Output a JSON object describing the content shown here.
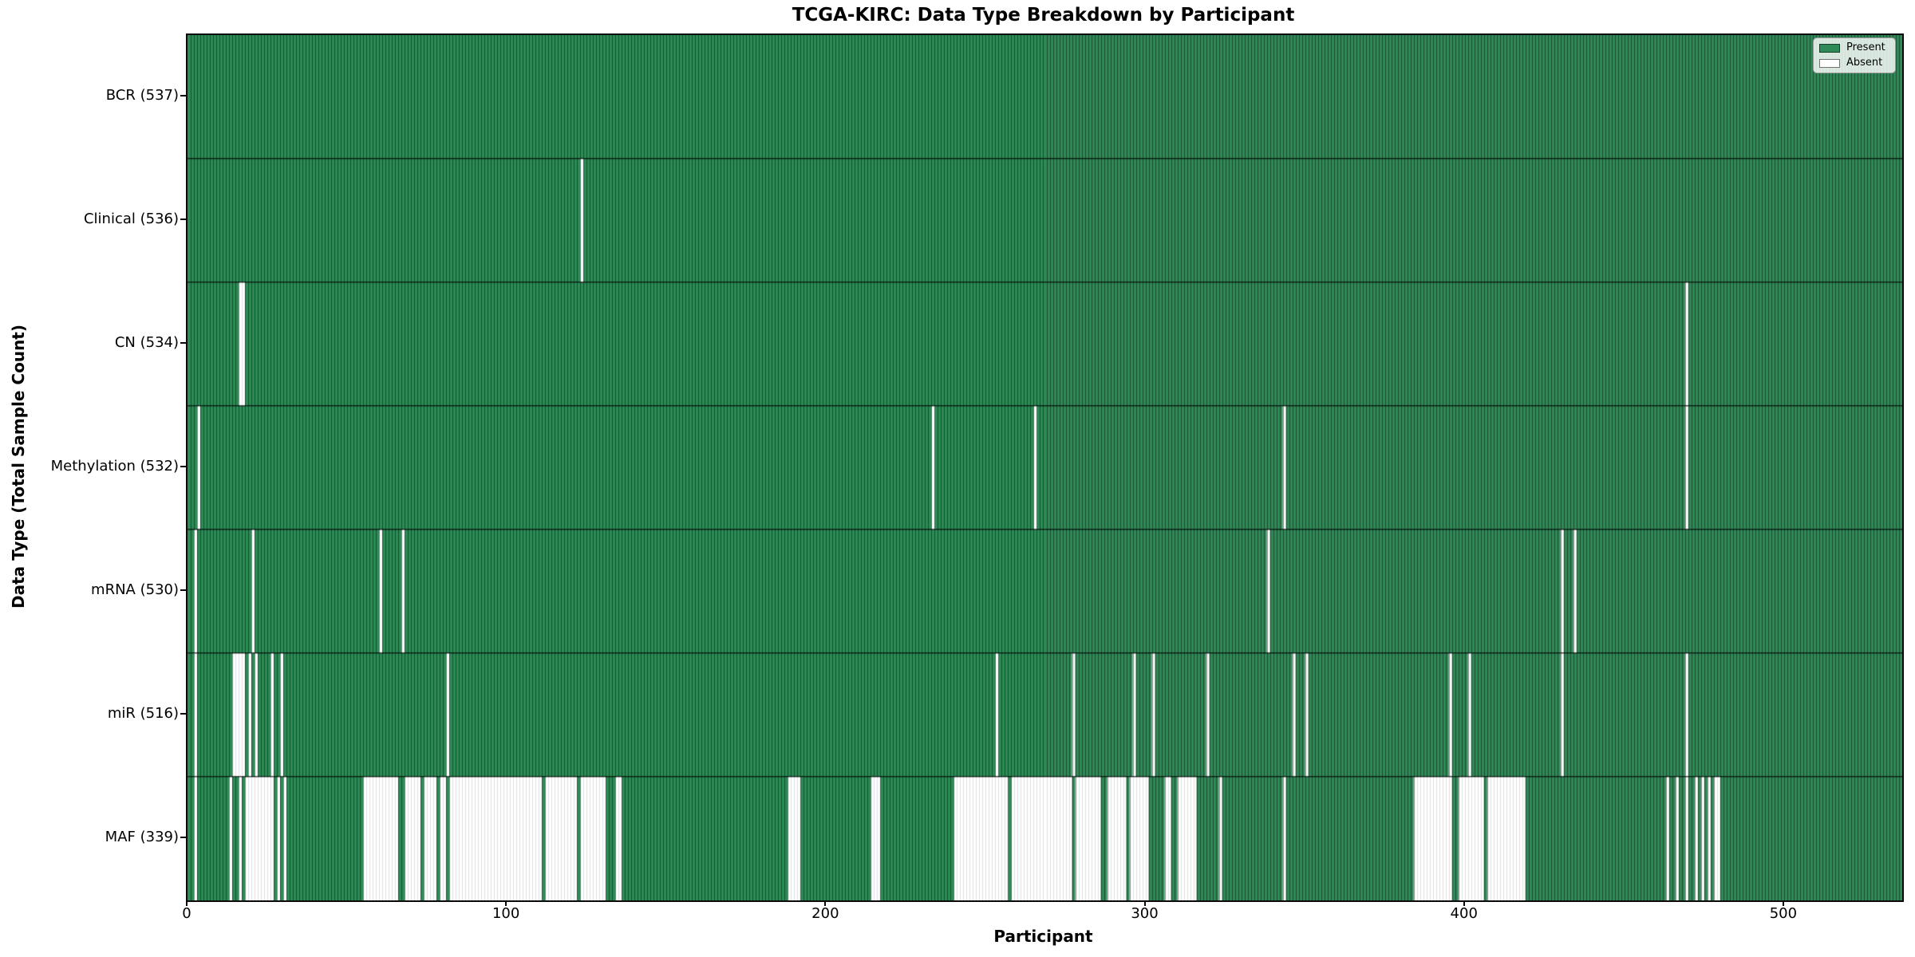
{
  "title": "TCGA-KIRC: Data Type Breakdown by Participant",
  "legend": {
    "present_label": "Present",
    "absent_label": "Absent"
  },
  "chart_data": {
    "type": "heatmap",
    "title": "TCGA-KIRC: Data Type Breakdown by Participant",
    "xlabel": "Participant",
    "ylabel": "Data Type (Total Sample Count)",
    "x_ticks": [
      0,
      100,
      200,
      300,
      400,
      500
    ],
    "xlim": [
      0,
      537
    ],
    "n_participants": 537,
    "grid": false,
    "legend_position": "upper right",
    "colors": {
      "present": "#2e8b57",
      "absent": "#ffffff",
      "present_edge": "rgba(0,0,0,0.45)",
      "absent_edge": "rgba(0,0,0,0.12)",
      "row_divider": "rgba(0,0,0,0.72)"
    },
    "legend": [
      {
        "label": "Present",
        "color": "#2e8b57"
      },
      {
        "label": "Absent",
        "color": "#ffffff"
      }
    ],
    "rows": [
      {
        "name": "BCR",
        "label": "BCR (537)",
        "present_count": 537,
        "absent_ranges": []
      },
      {
        "name": "Clinical",
        "label": "Clinical (536)",
        "present_count": 536,
        "absent_ranges": [
          [
            123,
            123
          ]
        ]
      },
      {
        "name": "CN",
        "label": "CN (534)",
        "present_count": 534,
        "absent_ranges": [
          [
            16,
            17
          ],
          [
            469,
            469
          ]
        ]
      },
      {
        "name": "Methylation",
        "label": "Methylation (532)",
        "present_count": 532,
        "absent_ranges": [
          [
            3,
            3
          ],
          [
            233,
            233
          ],
          [
            265,
            265
          ],
          [
            343,
            343
          ],
          [
            469,
            469
          ]
        ]
      },
      {
        "name": "mRNA",
        "label": "mRNA (530)",
        "present_count": 530,
        "absent_ranges": [
          [
            2,
            2
          ],
          [
            20,
            20
          ],
          [
            60,
            60
          ],
          [
            67,
            67
          ],
          [
            338,
            338
          ],
          [
            430,
            430
          ],
          [
            434,
            434
          ]
        ]
      },
      {
        "name": "miR",
        "label": "miR (516)",
        "present_count": 516,
        "absent_ranges": [
          [
            2,
            2
          ],
          [
            14,
            17
          ],
          [
            19,
            19
          ],
          [
            21,
            21
          ],
          [
            26,
            26
          ],
          [
            29,
            29
          ],
          [
            81,
            81
          ],
          [
            253,
            253
          ],
          [
            277,
            277
          ],
          [
            296,
            296
          ],
          [
            302,
            302
          ],
          [
            319,
            319
          ],
          [
            346,
            346
          ],
          [
            350,
            350
          ],
          [
            395,
            395
          ],
          [
            401,
            401
          ],
          [
            430,
            430
          ],
          [
            469,
            469
          ]
        ]
      },
      {
        "name": "MAF",
        "label": "MAF (339)",
        "present_count": 339,
        "absent_ranges": [
          [
            2,
            2
          ],
          [
            13,
            13
          ],
          [
            16,
            16
          ],
          [
            18,
            26
          ],
          [
            28,
            28
          ],
          [
            30,
            30
          ],
          [
            55,
            65
          ],
          [
            68,
            72
          ],
          [
            74,
            77
          ],
          [
            79,
            80
          ],
          [
            82,
            110
          ],
          [
            112,
            121
          ],
          [
            123,
            130
          ],
          [
            134,
            135
          ],
          [
            188,
            191
          ],
          [
            214,
            216
          ],
          [
            240,
            256
          ],
          [
            258,
            276
          ],
          [
            278,
            285
          ],
          [
            288,
            293
          ],
          [
            295,
            300
          ],
          [
            306,
            307
          ],
          [
            310,
            315
          ],
          [
            323,
            323
          ],
          [
            343,
            343
          ],
          [
            384,
            395
          ],
          [
            398,
            405
          ],
          [
            407,
            418
          ],
          [
            463,
            463
          ],
          [
            466,
            466
          ],
          [
            469,
            469
          ],
          [
            472,
            472
          ],
          [
            474,
            474
          ],
          [
            476,
            476
          ],
          [
            478,
            479
          ]
        ]
      }
    ]
  }
}
